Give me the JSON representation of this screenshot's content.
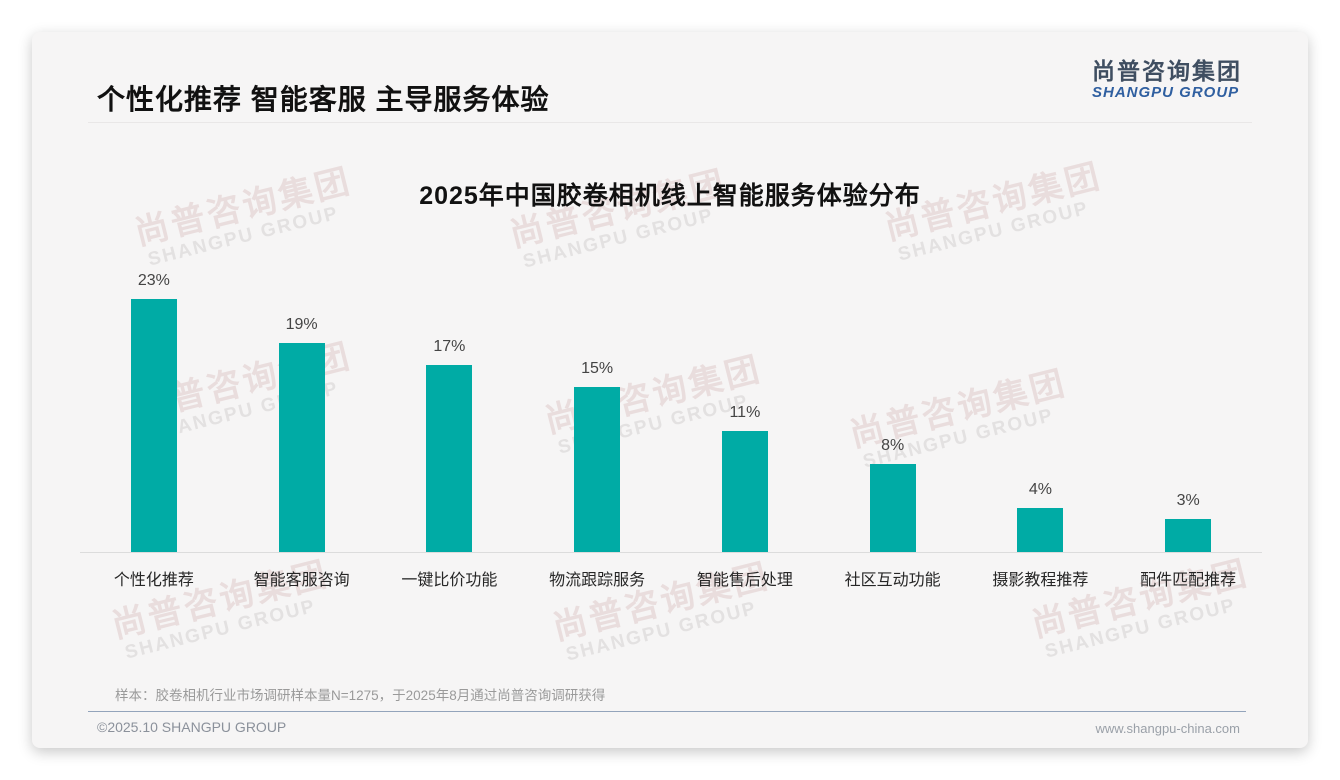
{
  "page": {
    "title": "个性化推荐 智能客服 主导服务体验",
    "logo": {
      "cn": "尚普咨询集团",
      "en": "SHANGPU GROUP"
    },
    "watermark": {
      "cn": "尚普咨询集团",
      "en": "SHANGPU GROUP"
    },
    "footer": {
      "sample_note": "样本：胶卷相机行业市场调研样本量N=1275，于2025年8月通过尚普咨询调研获得",
      "copyright": "©2025.10 SHANGPU GROUP",
      "website": "www.shangpu-china.com"
    }
  },
  "chart_data": {
    "type": "bar",
    "title": "2025年中国胶卷相机线上智能服务体验分布",
    "categories": [
      "个性化推荐",
      "智能客服咨询",
      "一键比价功能",
      "物流跟踪服务",
      "智能售后处理",
      "社区互动功能",
      "摄影教程推荐",
      "配件匹配推荐"
    ],
    "values": [
      23,
      19,
      17,
      15,
      11,
      8,
      4,
      3
    ],
    "value_labels": [
      "23%",
      "19%",
      "17%",
      "15%",
      "11%",
      "8%",
      "4%",
      "3%"
    ],
    "unit": "%",
    "bar_color": "#00ABA5",
    "xlabel": "",
    "ylabel": "",
    "ylim": [
      0,
      25
    ],
    "grid": false,
    "legend": null
  }
}
